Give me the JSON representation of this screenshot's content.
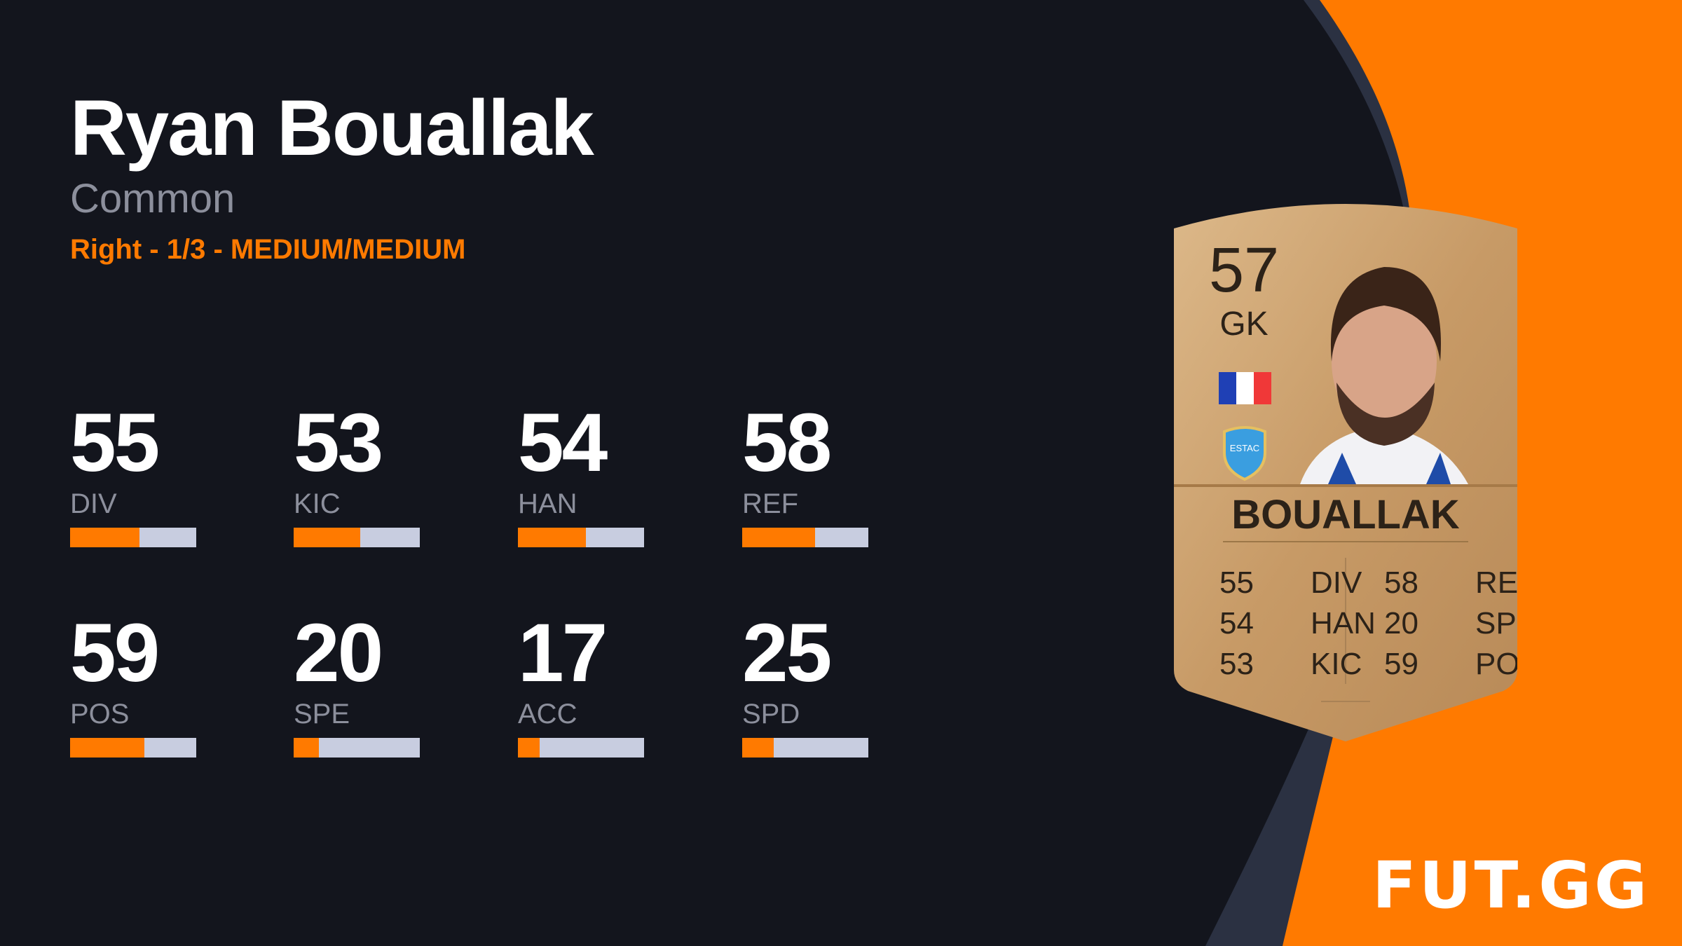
{
  "player": {
    "name": "Ryan Bouallak",
    "rarity": "Common",
    "preferences": "Right - 1/3 - MEDIUM/MEDIUM"
  },
  "stats": [
    {
      "value": 55,
      "label": "DIV"
    },
    {
      "value": 53,
      "label": "KIC"
    },
    {
      "value": 54,
      "label": "HAN"
    },
    {
      "value": 58,
      "label": "REF"
    },
    {
      "value": 59,
      "label": "POS"
    },
    {
      "value": 20,
      "label": "SPE"
    },
    {
      "value": 17,
      "label": "ACC"
    },
    {
      "value": 25,
      "label": "SPD"
    }
  ],
  "card": {
    "rating": "57",
    "position": "GK",
    "name": "BOUALLAK",
    "nation_flag": "France",
    "club": "ESTAC Troyes",
    "left_stats": [
      {
        "v": "55",
        "l": "DIV"
      },
      {
        "v": "54",
        "l": "HAN"
      },
      {
        "v": "53",
        "l": "KIC"
      }
    ],
    "right_stats": [
      {
        "v": "58",
        "l": "REF"
      },
      {
        "v": "20",
        "l": "SPE"
      },
      {
        "v": "59",
        "l": "POS"
      }
    ]
  },
  "brand": {
    "logo": "FUT.GG",
    "accent": "#ff7a00",
    "background": "#13151d"
  }
}
